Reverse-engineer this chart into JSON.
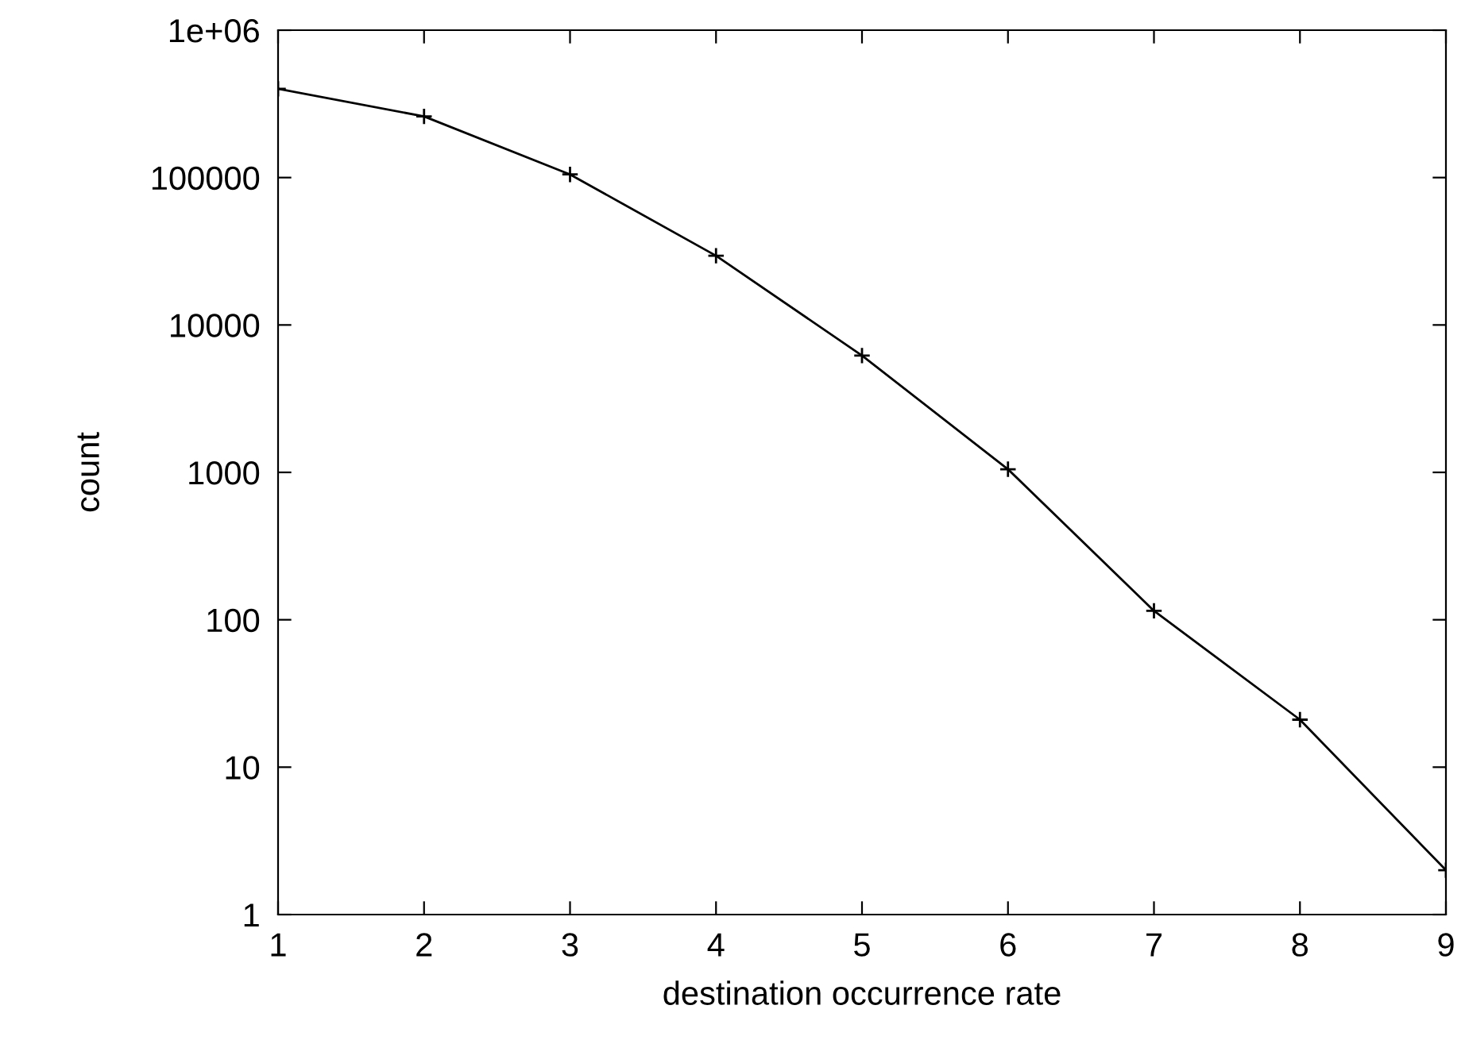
{
  "chart_data": {
    "type": "line",
    "xlabel": "destination occurrence rate",
    "ylabel": "count",
    "log": "y",
    "x": [
      1,
      2,
      3,
      4,
      5,
      6,
      7,
      8,
      9
    ],
    "series": [
      {
        "color": "#000000",
        "values": [
          400000,
          260000,
          105000,
          29500,
          6200,
          1050,
          115,
          21,
          2
        ]
      }
    ],
    "xlim": [
      1,
      9
    ],
    "xticks": [
      1,
      2,
      3,
      4,
      5,
      6,
      7,
      8,
      9
    ],
    "ylim": [
      1,
      1000000
    ],
    "yticks": [
      1,
      10,
      100,
      1000,
      10000,
      100000,
      {
        "value": 1000000,
        "label": "1e+06"
      }
    ],
    "grid": false,
    "marker": "cross",
    "line_style": "solid"
  }
}
